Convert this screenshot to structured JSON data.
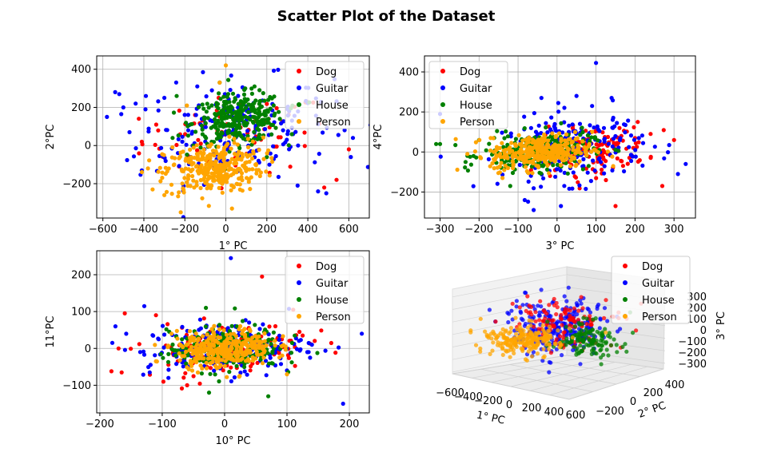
{
  "figure": {
    "title": "Scatter Plot of the Dataset"
  },
  "chart_data": [
    {
      "type": "scatter",
      "xlabel": "1° PC",
      "ylabel": "2°PC",
      "xlim": [
        -630,
        700
      ],
      "ylim": [
        -380,
        470
      ],
      "xticks": [
        -600,
        -400,
        -200,
        0,
        200,
        400,
        600
      ],
      "yticks": [
        -200,
        0,
        200,
        400
      ],
      "grid": true,
      "legend_position": "top-right",
      "series": [
        {
          "name": "Dog",
          "color": "#ff0000",
          "cx": [
            50,
            20,
            0,
            10
          ],
          "cy": [
            50,
            30,
            0,
            20
          ],
          "sx": 230,
          "sy": 120,
          "n": 70,
          "extra": [
            [
              -410,
              20
            ],
            [
              -340,
              110
            ],
            [
              540,
              -180
            ],
            [
              480,
              -220
            ],
            [
              600,
              -20
            ],
            [
              -150,
              160
            ]
          ]
        },
        {
          "name": "Guitar",
          "color": "#0000ff",
          "cx": [
            40,
            0
          ],
          "cy": [
            80,
            0
          ],
          "sx": 240,
          "sy": 150,
          "n": 200,
          "extra": [
            [
              -540,
              280
            ],
            [
              -520,
              270
            ],
            [
              -580,
              150
            ],
            [
              -500,
              200
            ],
            [
              -470,
              70
            ],
            [
              -390,
              260
            ],
            [
              -410,
              -130
            ],
            [
              450,
              -240
            ],
            [
              490,
              -250
            ],
            [
              610,
              -60
            ],
            [
              620,
              40
            ],
            [
              -300,
              250
            ],
            [
              350,
              -210
            ],
            [
              -440,
              220
            ]
          ]
        },
        {
          "name": "House",
          "color": "#008000",
          "cx": [
            60,
            0
          ],
          "cy": [
            140,
            0
          ],
          "sx": 110,
          "sy": 75,
          "n": 300,
          "extra": [
            [
              -30,
              330
            ],
            [
              140,
              310
            ],
            [
              -240,
              260
            ],
            [
              200,
              -60
            ],
            [
              -260,
              40
            ]
          ]
        },
        {
          "name": "Person",
          "color": "#ffa500",
          "cx": [
            -60,
            0
          ],
          "cy": [
            -120,
            0
          ],
          "sx": 120,
          "sy": 80,
          "n": 320,
          "extra": [
            [
              0,
              420
            ],
            [
              -30,
              330
            ],
            [
              -220,
              -350
            ],
            [
              -380,
              -120
            ],
            [
              -300,
              -260
            ],
            [
              30,
              -330
            ],
            [
              -190,
              210
            ]
          ]
        }
      ]
    },
    {
      "type": "scatter",
      "xlabel": "3° PC",
      "ylabel": "4°PC",
      "xlim": [
        -340,
        355
      ],
      "ylim": [
        -330,
        480
      ],
      "xticks": [
        -300,
        -200,
        -100,
        0,
        100,
        200,
        300
      ],
      "yticks": [
        -200,
        0,
        200,
        400
      ],
      "grid": true,
      "legend_position": "top-left",
      "series": [
        {
          "name": "Dog",
          "color": "#ff0000",
          "cx": [
            90,
            40
          ],
          "cy": [
            10,
            0
          ],
          "sx": 70,
          "sy": 70,
          "n": 150,
          "extra": [
            [
              270,
              -170
            ],
            [
              240,
              90
            ],
            [
              200,
              70
            ],
            [
              150,
              -270
            ],
            [
              40,
              120
            ],
            [
              300,
              60
            ]
          ]
        },
        {
          "name": "Guitar",
          "color": "#0000ff",
          "cx": [
            40,
            0
          ],
          "cy": [
            20,
            0
          ],
          "sx": 90,
          "sy": 100,
          "n": 220,
          "extra": [
            [
              100,
              445
            ],
            [
              330,
              -60
            ],
            [
              310,
              -110
            ],
            [
              -300,
              190
            ],
            [
              -40,
              270
            ],
            [
              50,
              280
            ],
            [
              140,
              270
            ],
            [
              90,
              230
            ],
            [
              -60,
              -290
            ],
            [
              10,
              -270
            ]
          ]
        },
        {
          "name": "House",
          "color": "#008000",
          "cx": [
            -50,
            0
          ],
          "cy": [
            0,
            0
          ],
          "sx": 70,
          "sy": 55,
          "n": 250,
          "extra": [
            [
              -310,
              40
            ],
            [
              -300,
              40
            ],
            [
              -200,
              60
            ],
            [
              -120,
              -170
            ]
          ]
        },
        {
          "name": "Person",
          "color": "#ffa500",
          "cx": [
            -40,
            0
          ],
          "cy": [
            0,
            0
          ],
          "sx": 65,
          "sy": 50,
          "n": 330,
          "extra": [
            [
              -230,
              -10
            ],
            [
              -170,
              70
            ],
            [
              -140,
              -130
            ]
          ]
        }
      ]
    },
    {
      "type": "scatter",
      "xlabel": "10° PC",
      "ylabel": "11°PC",
      "xlim": [
        -205,
        232
      ],
      "ylim": [
        -175,
        265
      ],
      "xticks": [
        -200,
        -100,
        0,
        100,
        200
      ],
      "yticks": [
        -100,
        0,
        100,
        200
      ],
      "grid": true,
      "legend_position": "top-right",
      "series": [
        {
          "name": "Dog",
          "color": "#ff0000",
          "cx": [
            0,
            0
          ],
          "cy": [
            0,
            0
          ],
          "sx": 65,
          "sy": 40,
          "n": 140,
          "extra": [
            [
              -170,
              0
            ],
            [
              -165,
              -65
            ],
            [
              -160,
              95
            ],
            [
              -110,
              90
            ],
            [
              60,
              195
            ],
            [
              110,
              105
            ],
            [
              120,
              45
            ],
            [
              -60,
              -100
            ]
          ]
        },
        {
          "name": "Guitar",
          "color": "#0000ff",
          "cx": [
            0,
            0
          ],
          "cy": [
            0,
            0
          ],
          "sx": 65,
          "sy": 42,
          "n": 200,
          "extra": [
            [
              10,
              245
            ],
            [
              190,
              -150
            ],
            [
              220,
              40
            ],
            [
              -180,
              15
            ],
            [
              -175,
              60
            ],
            [
              -120,
              -65
            ],
            [
              140,
              10
            ],
            [
              -90,
              -80
            ],
            [
              100,
              -60
            ]
          ]
        },
        {
          "name": "House",
          "color": "#008000",
          "cx": [
            0,
            0
          ],
          "cy": [
            0,
            0
          ],
          "sx": 45,
          "sy": 35,
          "n": 230,
          "extra": [
            [
              -25,
              -120
            ],
            [
              70,
              -130
            ],
            [
              -30,
              110
            ]
          ]
        },
        {
          "name": "Person",
          "color": "#ffa500",
          "cx": [
            0,
            0
          ],
          "cy": [
            0,
            0
          ],
          "sx": 38,
          "sy": 30,
          "n": 330,
          "extra": [
            [
              -110,
              -35
            ],
            [
              100,
              -70
            ],
            [
              -85,
              40
            ]
          ]
        }
      ]
    },
    {
      "type": "scatter3d",
      "xlabel": "1° PC",
      "ylabel": "2° PC",
      "zlabel": "3° PC",
      "xticks": [
        -600,
        -400,
        -200,
        0,
        200,
        400,
        600
      ],
      "yticks": [
        -200,
        0,
        200,
        400
      ],
      "zticks": [
        -300,
        -200,
        -100,
        0,
        100,
        200,
        300
      ],
      "grid": true,
      "legend_position": "top-right",
      "series": [
        {
          "name": "Dog",
          "color": "#ff0000",
          "n": 120
        },
        {
          "name": "Guitar",
          "color": "#0000ff",
          "n": 260
        },
        {
          "name": "House",
          "color": "#008000",
          "n": 130
        },
        {
          "name": "Person",
          "color": "#ffa500",
          "n": 220
        }
      ]
    }
  ]
}
